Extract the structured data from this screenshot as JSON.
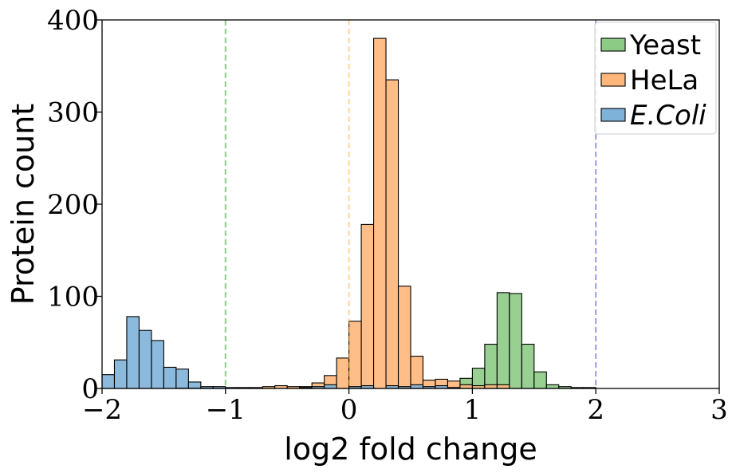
{
  "chart_data": {
    "type": "bar",
    "subtype": "overlaid histogram",
    "xlabel": "log2 fold change",
    "ylabel": "Protein count",
    "xlim": [
      -2,
      3
    ],
    "ylim": [
      0,
      400
    ],
    "xticks": [
      -2,
      -1,
      0,
      1,
      2,
      3
    ],
    "yticks": [
      0,
      100,
      200,
      300,
      400
    ],
    "xtick_labels": [
      "−2",
      "−1",
      "0",
      "1",
      "2",
      "3"
    ],
    "ytick_labels": [
      "0",
      "100",
      "200",
      "300",
      "400"
    ],
    "bin_width": 0.1,
    "grid": false,
    "legend_position": "top-right",
    "reference_lines": [
      {
        "x": -1,
        "color": "#2ca02c"
      },
      {
        "x": 0,
        "color": "#ffb347"
      },
      {
        "x": 2,
        "color": "#3b4fc4"
      }
    ],
    "series": [
      {
        "name": "Yeast",
        "color": "#8ccb85",
        "bins": [
          {
            "x0": 0.9,
            "value": 11
          },
          {
            "x0": 1.0,
            "value": 22
          },
          {
            "x0": 1.1,
            "value": 48
          },
          {
            "x0": 1.2,
            "value": 104
          },
          {
            "x0": 1.3,
            "value": 103
          },
          {
            "x0": 1.4,
            "value": 48
          },
          {
            "x0": 1.5,
            "value": 18
          },
          {
            "x0": 1.6,
            "value": 4
          },
          {
            "x0": 1.7,
            "value": 2
          },
          {
            "x0": 1.8,
            "value": 1
          },
          {
            "x0": 1.9,
            "value": 1
          }
        ]
      },
      {
        "name": "HeLa",
        "color": "#ffb67a",
        "bins": [
          {
            "x0": -1.4,
            "value": 1
          },
          {
            "x0": -1.3,
            "value": 1
          },
          {
            "x0": -1.2,
            "value": 1
          },
          {
            "x0": -1.1,
            "value": 1
          },
          {
            "x0": -1.0,
            "value": 1
          },
          {
            "x0": -0.9,
            "value": 1
          },
          {
            "x0": -0.8,
            "value": 1
          },
          {
            "x0": -0.7,
            "value": 2
          },
          {
            "x0": -0.6,
            "value": 3
          },
          {
            "x0": -0.5,
            "value": 2
          },
          {
            "x0": -0.4,
            "value": 2
          },
          {
            "x0": -0.3,
            "value": 6
          },
          {
            "x0": -0.2,
            "value": 14
          },
          {
            "x0": -0.1,
            "value": 33
          },
          {
            "x0": 0.0,
            "value": 73
          },
          {
            "x0": 0.1,
            "value": 178
          },
          {
            "x0": 0.2,
            "value": 380
          },
          {
            "x0": 0.3,
            "value": 335
          },
          {
            "x0": 0.4,
            "value": 111
          },
          {
            "x0": 0.5,
            "value": 35
          },
          {
            "x0": 0.6,
            "value": 9
          },
          {
            "x0": 0.7,
            "value": 10
          },
          {
            "x0": 0.8,
            "value": 8
          },
          {
            "x0": 0.9,
            "value": 4
          },
          {
            "x0": 1.0,
            "value": 3
          },
          {
            "x0": 1.1,
            "value": 4
          },
          {
            "x0": 1.2,
            "value": 4
          }
        ]
      },
      {
        "name": "E.Coli",
        "color": "#7fb2d8",
        "bins": [
          {
            "x0": -2.0,
            "value": 15
          },
          {
            "x0": -1.9,
            "value": 31
          },
          {
            "x0": -1.8,
            "value": 78
          },
          {
            "x0": -1.7,
            "value": 63
          },
          {
            "x0": -1.6,
            "value": 52
          },
          {
            "x0": -1.5,
            "value": 23
          },
          {
            "x0": -1.4,
            "value": 21
          },
          {
            "x0": -1.3,
            "value": 7
          },
          {
            "x0": -1.2,
            "value": 2
          },
          {
            "x0": -1.1,
            "value": 2
          },
          {
            "x0": -0.4,
            "value": 1
          },
          {
            "x0": -0.3,
            "value": 2
          },
          {
            "x0": -0.2,
            "value": 4
          },
          {
            "x0": 0.0,
            "value": 2
          },
          {
            "x0": 0.1,
            "value": 3
          },
          {
            "x0": 0.3,
            "value": 3
          },
          {
            "x0": 0.4,
            "value": 2
          },
          {
            "x0": 0.5,
            "value": 4
          },
          {
            "x0": 0.6,
            "value": 2
          },
          {
            "x0": 0.7,
            "value": 3
          },
          {
            "x0": 0.8,
            "value": 1
          }
        ]
      }
    ]
  }
}
